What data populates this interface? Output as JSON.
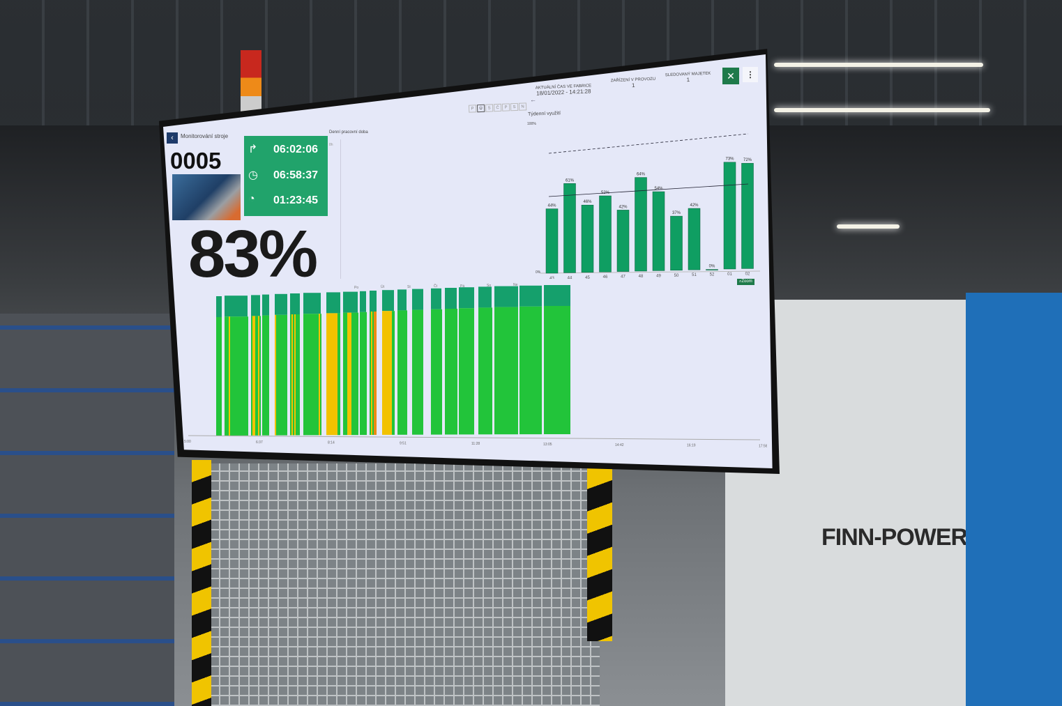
{
  "header": {
    "days": [
      "P",
      "Ú",
      "S",
      "Č",
      "P",
      "S",
      "N"
    ],
    "selected_day": 1,
    "current_time_label": "AKTUÁLNÍ ČAS VE FABRICE",
    "current_time": "18/01/2022 - 14:21:28",
    "devices_label": "ZAŘÍZENÍ V PROVOZU",
    "devices_count": "1",
    "assets_label": "SLEDOVANÝ MAJETEK",
    "assets_count": "1",
    "exit_fullscreen_icon": "compress-icon",
    "menu_icon": "more-vertical-icon",
    "accent": "#1e7a4a"
  },
  "machine": {
    "page_title": "Monitorování stroje",
    "code": "0005",
    "utilization": "83%",
    "times": [
      {
        "icon": "arrow-up-right-icon",
        "value": "06:02:06"
      },
      {
        "icon": "clock-icon",
        "value": "06:58:37"
      },
      {
        "icon": "sleep-clock-icon",
        "value": "01:23:45"
      }
    ],
    "box_color": "#21a36b"
  },
  "daily": {
    "title": "Denní pracovní doba",
    "ylabel": "8h"
  },
  "chart_data": [
    {
      "type": "bar",
      "title": "Týdenní využití",
      "categories": [
        "43",
        "44",
        "45",
        "46",
        "47",
        "48",
        "49",
        "50",
        "51",
        "52",
        "01",
        "02"
      ],
      "values": [
        44,
        61,
        46,
        52,
        42,
        64,
        54,
        37,
        42,
        0,
        73,
        72
      ],
      "value_labels": [
        "44%",
        "61%",
        "46%",
        "52%",
        "42%",
        "64%",
        "54%",
        "37%",
        "42%",
        "0%",
        "73%",
        "72%"
      ],
      "ylim": [
        0,
        100
      ],
      "yticks": [
        "0%",
        "100%"
      ],
      "bar_color": "#0f9e62",
      "trend_line": true,
      "dashed_target_line": true,
      "zoom_label": "Zoom"
    },
    {
      "type": "timeline",
      "day_labels": [
        "Po",
        "Út",
        "St",
        "Čt",
        "Pá",
        "So",
        "Ne"
      ],
      "xticks": [
        "5:00",
        "6:37",
        "8:14",
        "9:51",
        "11:28",
        "13:05",
        "14:42",
        "16:19",
        "17:56"
      ],
      "state_colors": {
        "running": "#22c43a",
        "idle": "#f2c200",
        "alarm": "#ec8a12",
        "header": "#15a06c"
      }
    }
  ],
  "scene": {
    "brand": "FINN-POWER"
  }
}
